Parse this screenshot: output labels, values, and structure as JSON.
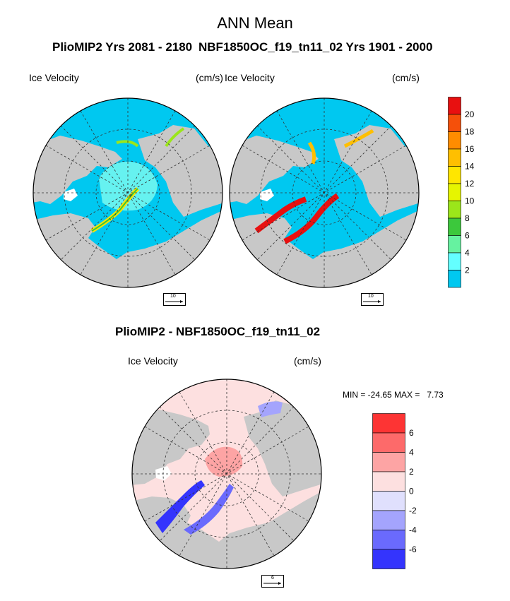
{
  "header": {
    "title": "ANN Mean"
  },
  "top_left": {
    "case_title": "PlioMIP2  Yrs 2081 - 2180",
    "field_label": "Ice Velocity",
    "units": "(cm/s)",
    "ref_vector": "10"
  },
  "top_right": {
    "case_title": "NBF1850OC_f19_tn11_02  Yrs 1901 - 2000",
    "field_label": "Ice Velocity",
    "units": "(cm/s)",
    "ref_vector": "10"
  },
  "bottom": {
    "case_title": "PlioMIP2 - NBF1850OC_f19_tn11_02",
    "field_label": "Ice Velocity",
    "units": "(cm/s)",
    "minmax": "MIN = -24.65 MAX =   7.73",
    "ref_vector": "6"
  },
  "colorbar_top": {
    "labels": [
      "20",
      "18",
      "16",
      "14",
      "12",
      "10",
      "8",
      "6",
      "4",
      "2"
    ],
    "colors": [
      "#e81010",
      "#f5500a",
      "#ff8c00",
      "#ffbf00",
      "#ffe600",
      "#e6f500",
      "#9be61a",
      "#3cc83c",
      "#66f2a0",
      "#64ffff",
      "#00c8f0"
    ]
  },
  "colorbar_bottom": {
    "labels": [
      "6",
      "4",
      "2",
      "0",
      "-2",
      "-4",
      "-6"
    ],
    "colors": [
      "#fd3434",
      "#fd6a6a",
      "#fda4a4",
      "#fde0e0",
      "#e0e0fd",
      "#a4a4fd",
      "#6a6afd",
      "#3434fd"
    ]
  },
  "map_colors": {
    "land": "#c8c8c8",
    "ocean_low": "#00c8f0",
    "diff_bg": "#fde0e0"
  }
}
